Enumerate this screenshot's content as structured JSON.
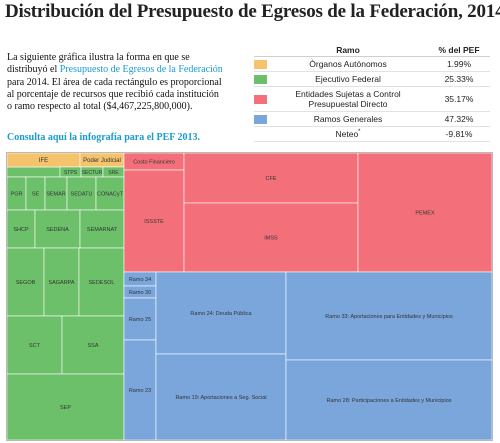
{
  "title": "Distribución del Presupuesto de Egresos de la Federación, 2014",
  "intro": {
    "before": "La siguiente gráfica ilustra la forma en que se distribuyó el ",
    "link": "Presupuesto de Egresos de la Federación",
    "after": " para 2014. El área de cada rectángulo es proporcional al porcentaje de recursos que recibió cada institución o ramo respecto al total ($4,467,225,800,000)."
  },
  "consulta_link": "Consulta aquí la infografía para el PEF 2013.",
  "legend": {
    "header_ramo": "Ramo",
    "header_pct": "% del PEF",
    "rows": [
      {
        "label": "Órganos Autónomos",
        "pct": "1.99%",
        "color": "#f5c36b"
      },
      {
        "label": "Ejecutivo Federal",
        "pct": "25.33%",
        "color": "#6cc06a"
      },
      {
        "label": "Entidades Sujetas a Control Presupuestal Directo",
        "line1": "Entidades Sujetas a Control",
        "line2": "Presupuestal Directo",
        "pct": "35.17%",
        "color": "#f3707a"
      },
      {
        "label": "Ramos Generales",
        "pct": "47.32%",
        "color": "#7aa6dc"
      },
      {
        "label": "Neteo",
        "sup": "*",
        "pct": "-9.81%",
        "color": ""
      }
    ]
  },
  "chart_data": {
    "type": "treemap",
    "title": "",
    "groups": [
      {
        "name": "Órganos Autónomos",
        "color": "#f5c36b",
        "pct": 1.99,
        "items": [
          "IFE",
          "Poder Judicial"
        ]
      },
      {
        "name": "Ejecutivo Federal",
        "color": "#6cc06a",
        "pct": 25.33,
        "items": [
          "STPS",
          "SECTUR",
          "SRE",
          "PGR",
          "SE",
          "SEMAR",
          "SEDATU",
          "CONACyT",
          "SHCP",
          "SEDENA",
          "SEMARNAT",
          "SEGOB",
          "SAGARPA",
          "SEDESOL",
          "SCT",
          "SSA",
          "SEP"
        ]
      },
      {
        "name": "Entidades Sujetas a Control Presupuestal Directo",
        "color": "#f3707a",
        "pct": 35.17,
        "items": [
          "Costo Financiero",
          "ISSSTE",
          "CFE",
          "IMSS",
          "PEMEX"
        ]
      },
      {
        "name": "Ramos Generales",
        "color": "#7aa6dc",
        "pct": 47.32,
        "items": [
          "Ramo 34",
          "Ramo 30",
          "Ramo 25",
          "Ramo 23",
          "Ramo 24: Deuda Pública",
          "Ramo 19: Aportaciones a Seg. Social",
          "Ramo 33: Aportaciones para Entidades y Municipios",
          "Ramo 28: Participaciones a Entidades y Municipios"
        ]
      }
    ]
  }
}
